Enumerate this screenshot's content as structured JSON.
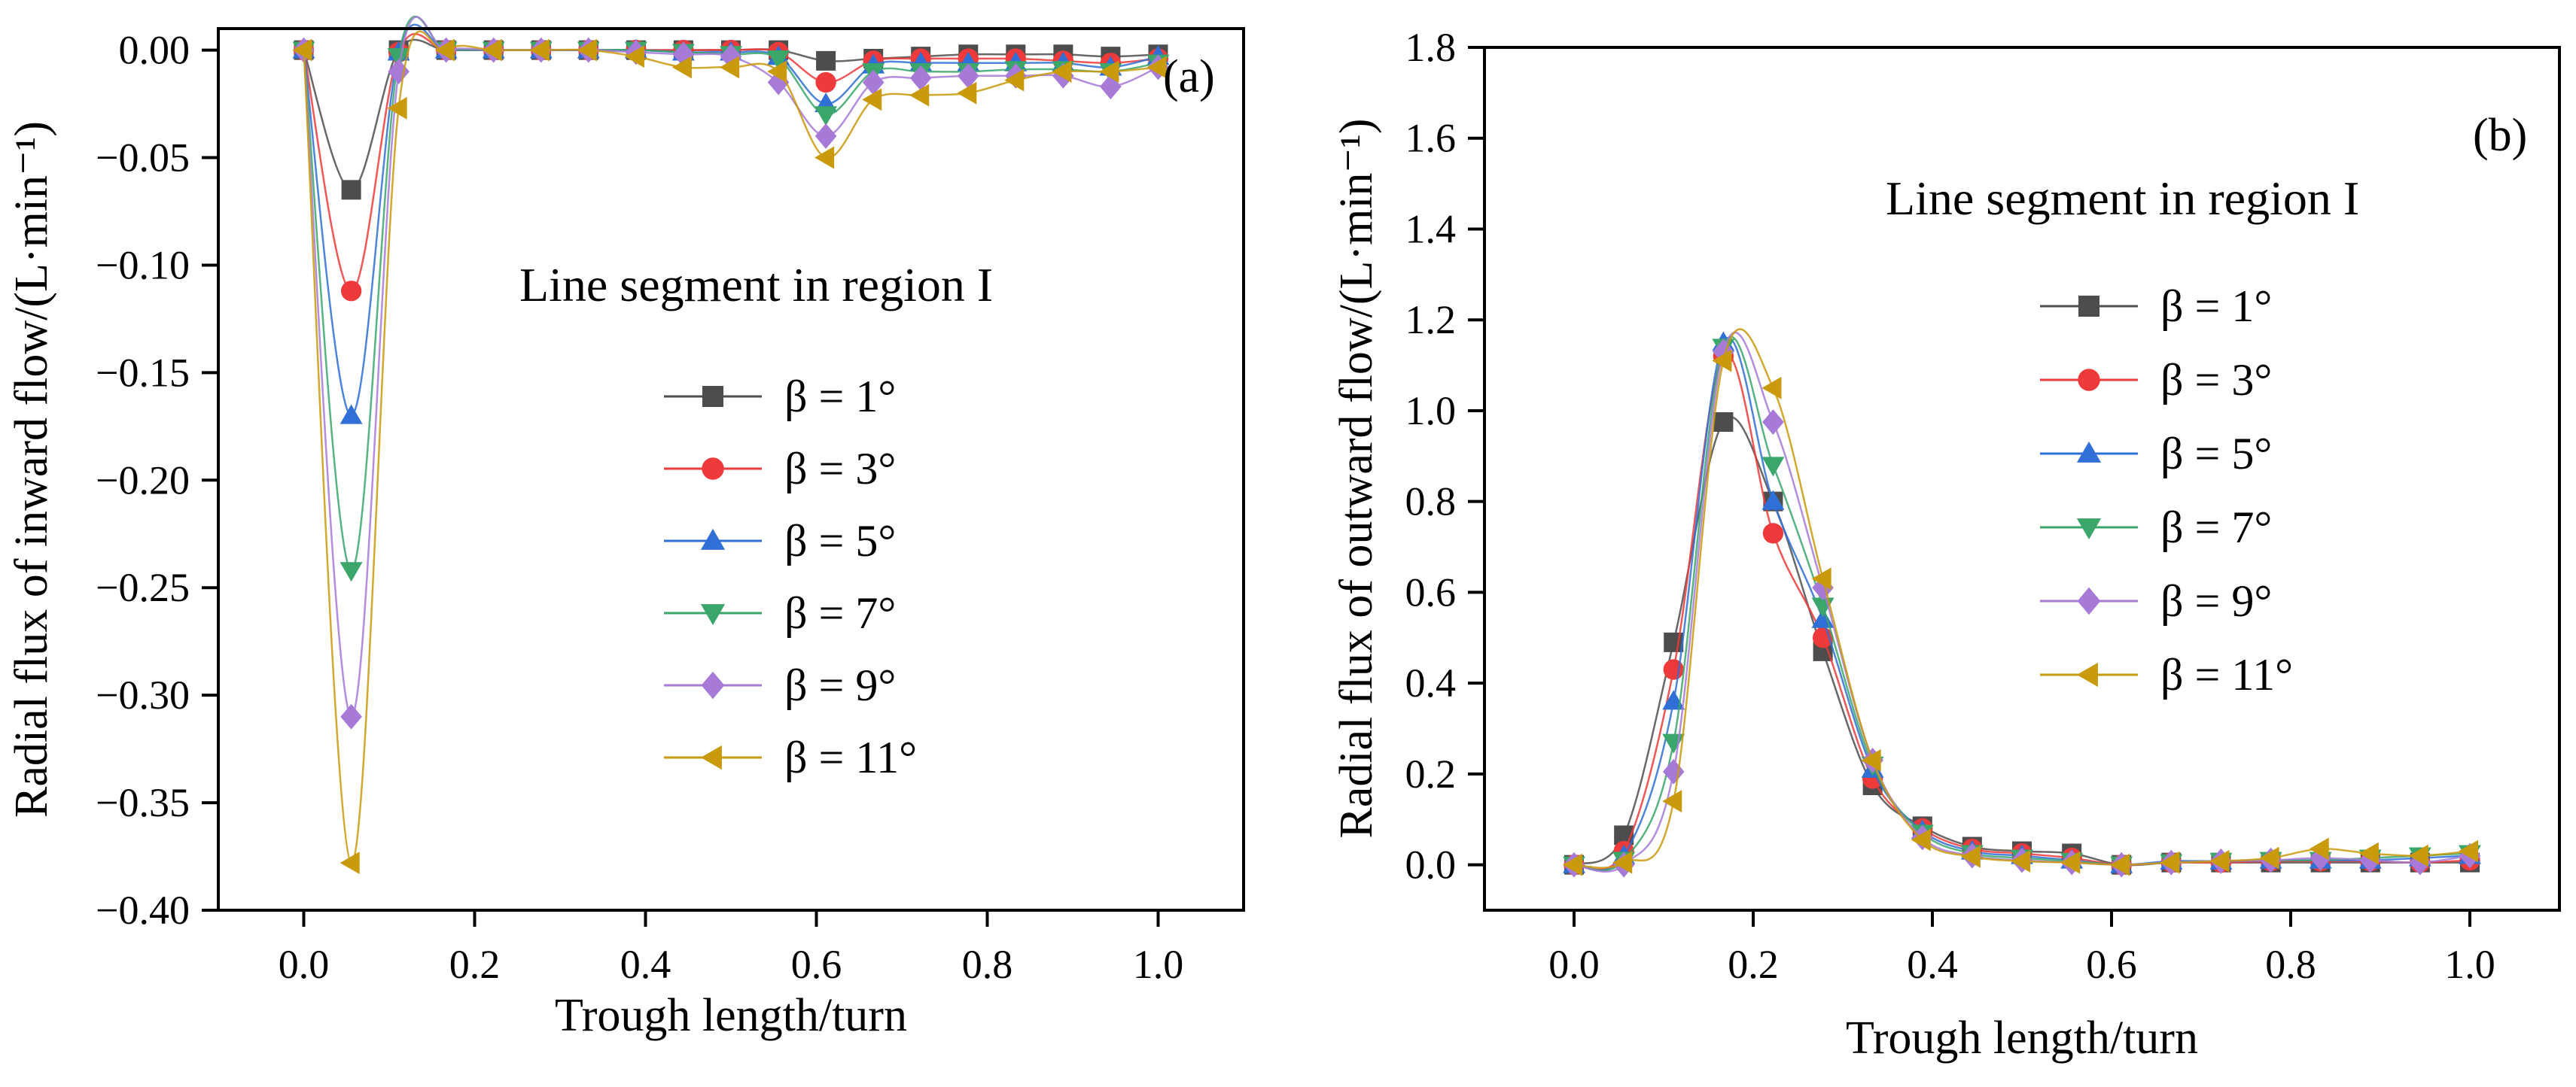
{
  "figure": {
    "colors": {
      "axis": "#000000",
      "s1": "#4d4d4d",
      "s3": "#ee3a3a",
      "s5": "#2f6fd6",
      "s7": "#3aa66a",
      "s9": "#a77ad8",
      "s11": "#c99a0c"
    }
  },
  "chart_data": [
    {
      "type": "line",
      "panel_label": "(a)",
      "annotation": "Line segment in region I",
      "xlabel": "Trough length/turn",
      "ylabel": "Radial flux of inward flow/(L·min⁻¹)",
      "xlim": [
        -0.1,
        1.1
      ],
      "ylim": [
        -0.4,
        0.01
      ],
      "xticks": [
        "0.0",
        "0.2",
        "0.4",
        "0.6",
        "0.8",
        "1.0"
      ],
      "yticks": [
        "0.00",
        "−0.05",
        "−0.10",
        "−0.15",
        "−0.20",
        "−0.25",
        "−0.30",
        "−0.35",
        "−0.40"
      ],
      "x": [
        0,
        0.0556,
        0.1111,
        0.1667,
        0.2222,
        0.2778,
        0.3333,
        0.3889,
        0.4444,
        0.5,
        0.5556,
        0.6111,
        0.6667,
        0.7222,
        0.7778,
        0.8333,
        0.8889,
        0.9444,
        1.0
      ],
      "series": [
        {
          "name": "β = 1°",
          "marker": "square",
          "color_key": "s1",
          "values": [
            0,
            -0.065,
            0,
            0,
            0,
            0,
            0,
            0,
            0,
            0,
            0,
            -0.005,
            -0.004,
            -0.003,
            -0.002,
            -0.002,
            -0.002,
            -0.003,
            -0.002
          ]
        },
        {
          "name": "β = 3°",
          "marker": "circle",
          "color_key": "s3",
          "values": [
            0,
            -0.112,
            -0.001,
            0,
            0,
            0,
            0,
            0,
            0,
            0,
            -0.001,
            -0.015,
            -0.005,
            -0.004,
            -0.004,
            -0.004,
            -0.005,
            -0.006,
            -0.004
          ]
        },
        {
          "name": "β = 5°",
          "marker": "triangle-up",
          "color_key": "s5",
          "values": [
            0,
            -0.17,
            -0.001,
            0,
            0,
            0,
            0,
            0,
            -0.001,
            -0.001,
            -0.003,
            -0.025,
            -0.007,
            -0.006,
            -0.006,
            -0.006,
            -0.006,
            -0.008,
            -0.003
          ]
        },
        {
          "name": "β = 7°",
          "marker": "triangle-down",
          "color_key": "s7",
          "values": [
            0,
            -0.242,
            -0.003,
            0,
            0,
            0,
            0,
            0,
            -0.001,
            -0.002,
            -0.004,
            -0.03,
            -0.01,
            -0.01,
            -0.01,
            -0.009,
            -0.009,
            -0.01,
            -0.006
          ]
        },
        {
          "name": "β = 9°",
          "marker": "diamond",
          "color_key": "s9",
          "values": [
            0,
            -0.31,
            -0.01,
            0,
            0,
            0,
            0,
            -0.001,
            -0.002,
            -0.003,
            -0.015,
            -0.04,
            -0.015,
            -0.013,
            -0.012,
            -0.012,
            -0.012,
            -0.017,
            -0.008
          ]
        },
        {
          "name": "β = 11°",
          "marker": "triangle-left",
          "color_key": "s11",
          "values": [
            0,
            -0.378,
            -0.027,
            0,
            0,
            0,
            0,
            -0.003,
            -0.008,
            -0.008,
            -0.01,
            -0.05,
            -0.023,
            -0.021,
            -0.02,
            -0.014,
            -0.01,
            -0.01,
            -0.008
          ]
        }
      ]
    },
    {
      "type": "line",
      "panel_label": "(b)",
      "annotation": "Line segment in region I",
      "xlabel": "Trough length/turn",
      "ylabel": "Radial flux of outward flow/(L·min⁻¹)",
      "xlim": [
        -0.1,
        1.1
      ],
      "ylim": [
        -0.1,
        1.8
      ],
      "xticks": [
        "0.0",
        "0.2",
        "0.4",
        "0.6",
        "0.8",
        "1.0"
      ],
      "yticks": [
        "0.0",
        "0.2",
        "0.4",
        "0.6",
        "0.8",
        "1.0",
        "1.2",
        "1.4",
        "1.6",
        "1.8"
      ],
      "x": [
        0,
        0.0556,
        0.1111,
        0.1667,
        0.2222,
        0.2778,
        0.3333,
        0.3889,
        0.4444,
        0.5,
        0.5556,
        0.6111,
        0.6667,
        0.7222,
        0.7778,
        0.8333,
        0.8889,
        0.9444,
        1.0
      ],
      "series": [
        {
          "name": "β = 1°",
          "marker": "square",
          "color_key": "s1",
          "values": [
            0,
            0.065,
            0.49,
            0.975,
            0.8,
            0.47,
            0.175,
            0.085,
            0.04,
            0.03,
            0.025,
            0.0,
            0.005,
            0.005,
            0.005,
            0.005,
            0.005,
            0.005,
            0.005
          ]
        },
        {
          "name": "β = 3°",
          "marker": "circle",
          "color_key": "s3",
          "values": [
            0,
            0.03,
            0.43,
            1.12,
            0.73,
            0.5,
            0.19,
            0.08,
            0.035,
            0.025,
            0.015,
            0.0,
            0.005,
            0.005,
            0.008,
            0.008,
            0.008,
            0.005,
            0.01
          ]
        },
        {
          "name": "β = 5°",
          "marker": "triangle-up",
          "color_key": "s5",
          "values": [
            0,
            0.02,
            0.36,
            1.15,
            0.8,
            0.54,
            0.21,
            0.075,
            0.03,
            0.02,
            0.01,
            0.0,
            0.008,
            0.008,
            0.01,
            0.01,
            0.01,
            0.015,
            0.02
          ]
        },
        {
          "name": "β = 7°",
          "marker": "triangle-down",
          "color_key": "s7",
          "values": [
            0,
            0.01,
            0.27,
            1.14,
            0.88,
            0.57,
            0.22,
            0.07,
            0.025,
            0.015,
            0.008,
            0.0,
            0.005,
            0.008,
            0.01,
            0.01,
            0.015,
            0.02,
            0.025
          ]
        },
        {
          "name": "β = 9°",
          "marker": "diamond",
          "color_key": "s9",
          "values": [
            0,
            0.0,
            0.205,
            1.13,
            0.975,
            0.61,
            0.23,
            0.06,
            0.02,
            0.01,
            0.005,
            0.0,
            0.005,
            0.008,
            0.01,
            0.015,
            0.01,
            0.005,
            0.02
          ]
        },
        {
          "name": "β = 11°",
          "marker": "triangle-left",
          "color_key": "s11",
          "values": [
            0,
            0.005,
            0.14,
            1.11,
            1.05,
            0.63,
            0.23,
            0.055,
            0.018,
            0.008,
            0.005,
            0.0,
            0.005,
            0.008,
            0.015,
            0.035,
            0.025,
            0.02,
            0.03
          ]
        }
      ]
    }
  ]
}
